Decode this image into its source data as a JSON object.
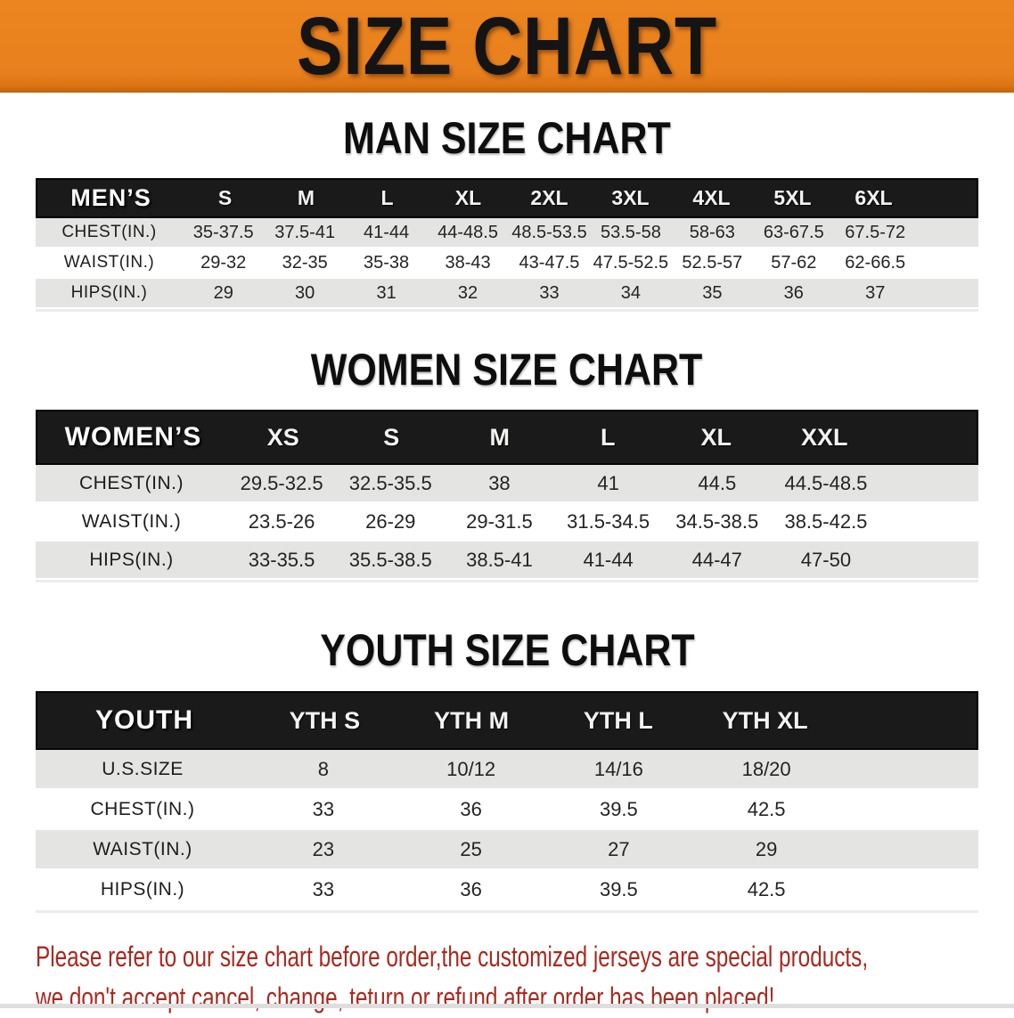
{
  "banner": {
    "title": "SIZE CHART"
  },
  "sections": [
    {
      "id": "men-size-chart",
      "heading": "MAN SIZE CHART",
      "group_label": "MEN’S",
      "columns": [
        "S",
        "M",
        "L",
        "XL",
        "2XL",
        "3XL",
        "4XL",
        "5XL",
        "6XL"
      ],
      "rows": [
        {
          "label": "CHEST(IN.)",
          "values": [
            "35-37.5",
            "37.5-41",
            "41-44",
            "44-48.5",
            "48.5-53.5",
            "53.5-58",
            "58-63",
            "63-67.5",
            "67.5-72"
          ]
        },
        {
          "label": "WAIST(IN.)",
          "values": [
            "29-32",
            "32-35",
            "35-38",
            "38-43",
            "43-47.5",
            "47.5-52.5",
            "52.5-57",
            "57-62",
            "62-66.5"
          ]
        },
        {
          "label": "HIPS(IN.)",
          "values": [
            "29",
            "30",
            "31",
            "32",
            "33",
            "34",
            "35",
            "36",
            "37"
          ]
        }
      ]
    },
    {
      "id": "women-size-chart",
      "heading": "WOMEN SIZE CHART",
      "group_label": "WOMEN’S",
      "columns": [
        "XS",
        "S",
        "M",
        "L",
        "XL",
        "XXL"
      ],
      "rows": [
        {
          "label": "CHEST(IN.)",
          "values": [
            "29.5-32.5",
            "32.5-35.5",
            "38",
            "41",
            "44.5",
            "44.5-48.5"
          ]
        },
        {
          "label": "WAIST(IN.)",
          "values": [
            "23.5-26",
            "26-29",
            "29-31.5",
            "31.5-34.5",
            "34.5-38.5",
            "38.5-42.5"
          ]
        },
        {
          "label": "HIPS(IN.)",
          "values": [
            "33-35.5",
            "35.5-38.5",
            "38.5-41",
            "41-44",
            "44-47",
            "47-50"
          ]
        }
      ]
    },
    {
      "id": "youth-size-chart",
      "heading": "YOUTH SIZE CHART",
      "group_label": "YOUTH",
      "columns": [
        "YTH S",
        "YTH M",
        "YTH L",
        "YTH XL"
      ],
      "rows": [
        {
          "label": "U.S.SIZE",
          "values": [
            "8",
            "10/12",
            "14/16",
            "18/20"
          ]
        },
        {
          "label": "CHEST(IN.)",
          "values": [
            "33",
            "36",
            "39.5",
            "42.5"
          ]
        },
        {
          "label": "WAIST(IN.)",
          "values": [
            "23",
            "25",
            "27",
            "29"
          ]
        },
        {
          "label": "HIPS(IN.)",
          "values": [
            "33",
            "36",
            "39.5",
            "42.5"
          ]
        }
      ]
    }
  ],
  "disclaimer": {
    "line1": "Please refer to our size chart before order,the customized jerseys are special products,",
    "line2": "we don't accept cancel, change, teturn or refund after order has been placed!"
  },
  "colors": {
    "banner_orange": "#EC851F",
    "bar_black": "#1A1A1A",
    "row_gray": "#E4E4E3",
    "disclaimer_red": "#A8291F"
  }
}
